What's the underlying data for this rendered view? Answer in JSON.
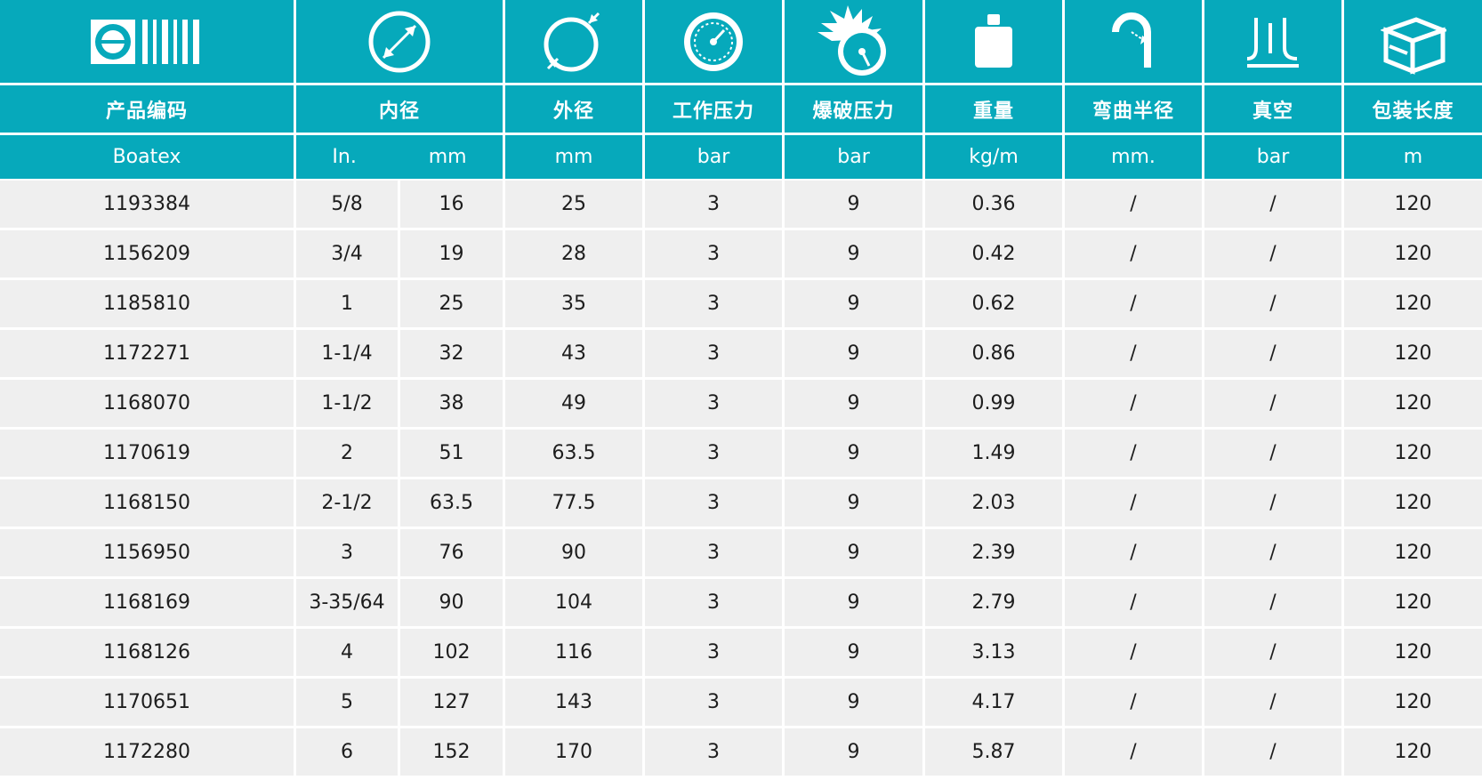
{
  "header": {
    "icons": [
      "brand-logo-barcode-icon",
      "inner-diameter-icon",
      "outer-diameter-icon",
      "working-pressure-gauge-icon",
      "burst-pressure-gauge-icon",
      "weight-icon",
      "bend-radius-icon",
      "vacuum-icon",
      "package-box-icon"
    ],
    "columns": {
      "code": "产品编码",
      "inner": "内径",
      "outer": "外径",
      "work": "工作压力",
      "burst": "爆破压力",
      "weight": "重量",
      "bend": "弯曲半径",
      "vacuum": "真空",
      "pack": "包装长度"
    },
    "units": {
      "code": "Boatex",
      "inner_in": "In.",
      "inner_mm": "mm",
      "outer": "mm",
      "work": "bar",
      "burst": "bar",
      "weight": "kg/m",
      "bend": "mm.",
      "vacuum": "bar",
      "pack": "m"
    }
  },
  "colors": {
    "accent": "#06a9bb",
    "row": "#efefef",
    "text": "#1d1d1d"
  },
  "rows": [
    [
      "1193384",
      "5/8",
      "16",
      "25",
      "3",
      "9",
      "0.36",
      "/",
      "/",
      "120"
    ],
    [
      "1156209",
      "3/4",
      "19",
      "28",
      "3",
      "9",
      "0.42",
      "/",
      "/",
      "120"
    ],
    [
      "1185810",
      "1",
      "25",
      "35",
      "3",
      "9",
      "0.62",
      "/",
      "/",
      "120"
    ],
    [
      "1172271",
      "1-1/4",
      "32",
      "43",
      "3",
      "9",
      "0.86",
      "/",
      "/",
      "120"
    ],
    [
      "1168070",
      "1-1/2",
      "38",
      "49",
      "3",
      "9",
      "0.99",
      "/",
      "/",
      "120"
    ],
    [
      "1170619",
      "2",
      "51",
      "63.5",
      "3",
      "9",
      "1.49",
      "/",
      "/",
      "120"
    ],
    [
      "1168150",
      "2-1/2",
      "63.5",
      "77.5",
      "3",
      "9",
      "2.03",
      "/",
      "/",
      "120"
    ],
    [
      "1156950",
      "3",
      "76",
      "90",
      "3",
      "9",
      "2.39",
      "/",
      "/",
      "120"
    ],
    [
      "1168169",
      "3-35/64",
      "90",
      "104",
      "3",
      "9",
      "2.79",
      "/",
      "/",
      "120"
    ],
    [
      "1168126",
      "4",
      "102",
      "116",
      "3",
      "9",
      "3.13",
      "/",
      "/",
      "120"
    ],
    [
      "1170651",
      "5",
      "127",
      "143",
      "3",
      "9",
      "4.17",
      "/",
      "/",
      "120"
    ],
    [
      "1172280",
      "6",
      "152",
      "170",
      "3",
      "9",
      "5.87",
      "/",
      "/",
      "120"
    ]
  ]
}
